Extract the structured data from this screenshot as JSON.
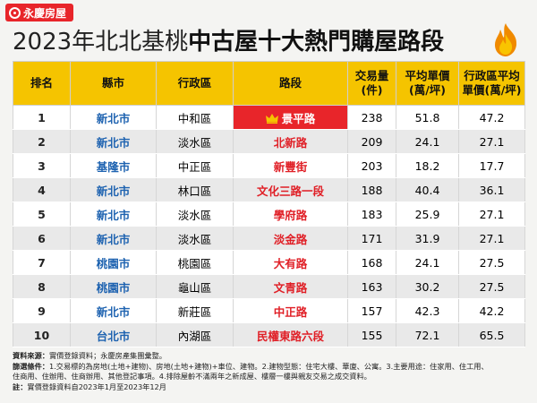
{
  "brand": {
    "name": "永慶房屋"
  },
  "title": {
    "part1": "2023年北北基桃",
    "part2": "中古屋十大熱門購屋路段"
  },
  "table": {
    "headers": {
      "rank": "排名",
      "city": "縣市",
      "district": "行政區",
      "road": "路段",
      "volume_l1": "交易量",
      "volume_l2": "(件)",
      "price_l1": "平均單價",
      "price_l2": "(萬/坪)",
      "dist_l1": "行政區平均",
      "dist_l2": "單價(萬/坪)"
    },
    "rows": [
      {
        "rank": "1",
        "city": "新北市",
        "district": "中和區",
        "road": "景平路",
        "volume": "238",
        "price": "51.8",
        "district_price": "47.2"
      },
      {
        "rank": "2",
        "city": "新北市",
        "district": "淡水區",
        "road": "北新路",
        "volume": "209",
        "price": "24.1",
        "district_price": "27.1"
      },
      {
        "rank": "3",
        "city": "基隆市",
        "district": "中正區",
        "road": "新豐街",
        "volume": "203",
        "price": "18.2",
        "district_price": "17.7"
      },
      {
        "rank": "4",
        "city": "新北市",
        "district": "林口區",
        "road": "文化三路一段",
        "volume": "188",
        "price": "40.4",
        "district_price": "36.1"
      },
      {
        "rank": "5",
        "city": "新北市",
        "district": "淡水區",
        "road": "學府路",
        "volume": "183",
        "price": "25.9",
        "district_price": "27.1"
      },
      {
        "rank": "6",
        "city": "新北市",
        "district": "淡水區",
        "road": "淡金路",
        "volume": "171",
        "price": "31.9",
        "district_price": "27.1"
      },
      {
        "rank": "7",
        "city": "桃園市",
        "district": "桃園區",
        "road": "大有路",
        "volume": "168",
        "price": "24.1",
        "district_price": "27.5"
      },
      {
        "rank": "8",
        "city": "桃園市",
        "district": "龜山區",
        "road": "文青路",
        "volume": "163",
        "price": "30.2",
        "district_price": "27.5"
      },
      {
        "rank": "9",
        "city": "新北市",
        "district": "新莊區",
        "road": "中正路",
        "volume": "157",
        "price": "42.3",
        "district_price": "42.2"
      },
      {
        "rank": "10",
        "city": "台北市",
        "district": "內湖區",
        "road": "民權東路六段",
        "volume": "155",
        "price": "72.1",
        "district_price": "65.5"
      }
    ]
  },
  "notes": {
    "source_label": "資料來源：",
    "source_text": "實價登錄資料；永慶房產集團彙整。",
    "criteria_label": "篩選條件：",
    "criteria_text": "1.交易標的為房地(土地+建物)、房地(土地+建物)+車位、建物。2.建物型態：住宅大樓、華廈、公寓。3.主要用途：住家用、住工用、",
    "criteria_text2": "住商用、住辦用、住商辦用、其他登記事項。4.排除屋齡不滿兩年之新成屋、樓層一樓與親友交易之成交資料。",
    "note_label": "註：",
    "note_text": "實價登錄資料自2023年1月至2023年12月"
  },
  "colors": {
    "brand_red": "#e8252a",
    "header_yellow": "#f5c400",
    "city_blue": "#1d62b0",
    "road_red": "#e01f26"
  },
  "icons": {
    "brand": "brand-logo-icon",
    "flame": "flame-icon",
    "crown": "crown-icon"
  }
}
